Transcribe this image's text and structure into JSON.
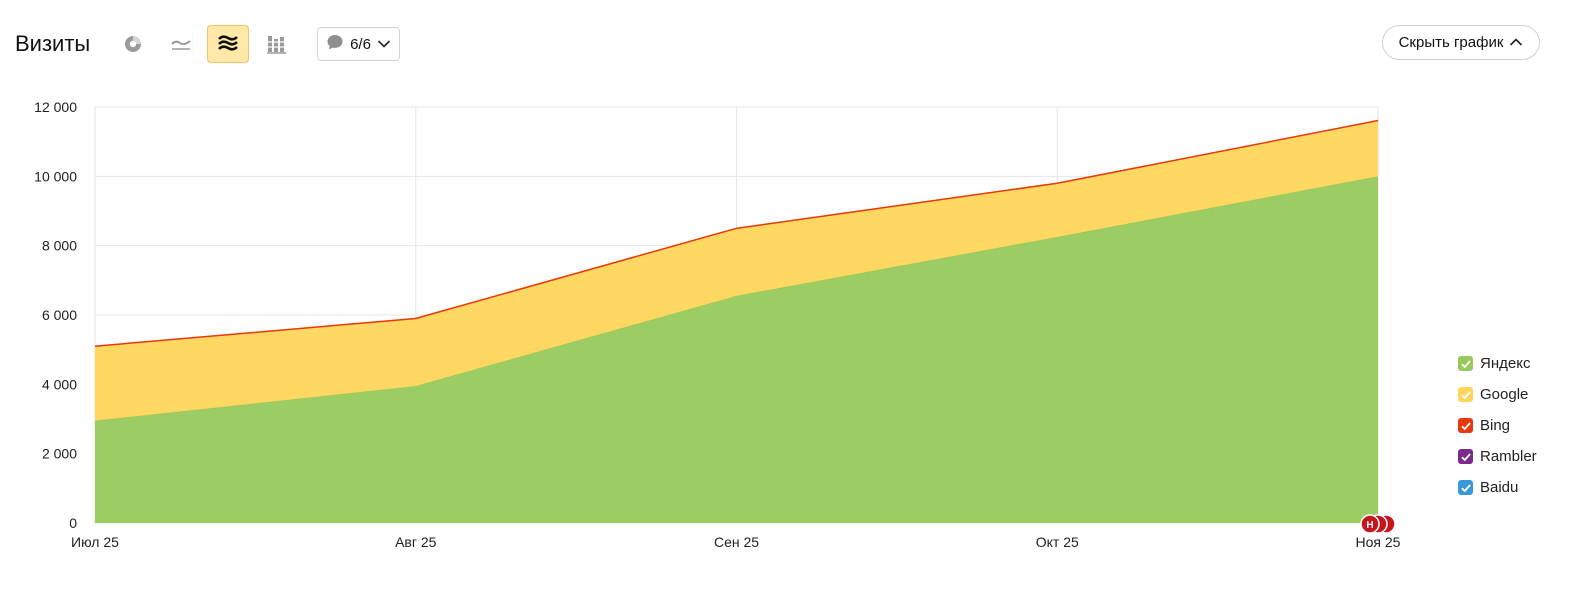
{
  "header": {
    "title": "Визиты",
    "toolbar_icons": [
      {
        "name": "pie-chart-icon",
        "active": false
      },
      {
        "name": "line-chart-icon",
        "active": false
      },
      {
        "name": "stacked-area-chart-icon",
        "active": true
      },
      {
        "name": "stacked-bar-chart-icon",
        "active": false
      }
    ],
    "comments": {
      "label": "6/6",
      "icon": "comment-icon",
      "dropdown_icon": "chevron-down-icon"
    },
    "hide_chart": {
      "label": "Скрыть график",
      "icon": "chevron-up-icon"
    }
  },
  "colors": {
    "yandex": "#97c95c",
    "google": "#ffd65c",
    "bing": "#e8380d",
    "rambler": "#7b2b8c",
    "baidu": "#3a9ad9",
    "grid": "#e6e6e6",
    "annotation": "#c4161c"
  },
  "chart_data": {
    "type": "area",
    "stacked": true,
    "categories": [
      "Июл 25",
      "Авг 25",
      "Сен 25",
      "Окт 25",
      "Ноя 25"
    ],
    "ylim": [
      0,
      12000
    ],
    "yticks": [
      0,
      2000,
      4000,
      6000,
      8000,
      10000,
      12000
    ],
    "ytick_labels": [
      "0",
      "2 000",
      "4 000",
      "6 000",
      "8 000",
      "10 000",
      "12 000"
    ],
    "grid": true,
    "legend_position": "right",
    "series": [
      {
        "name": "Яндекс",
        "color": "#97c95c",
        "values": [
          2950,
          3950,
          6550,
          8250,
          10000
        ]
      },
      {
        "name": "Google",
        "color": "#ffd65c",
        "values": [
          2150,
          1950,
          1950,
          1550,
          1600
        ]
      },
      {
        "name": "Bing",
        "color": "#e8380d",
        "values": [
          0,
          0,
          0,
          0,
          10
        ]
      },
      {
        "name": "Rambler",
        "color": "#7b2b8c",
        "values": [
          0,
          0,
          0,
          0,
          0
        ]
      },
      {
        "name": "Baidu",
        "color": "#3a9ad9",
        "values": [
          0,
          0,
          0,
          0,
          0
        ]
      }
    ],
    "annotations": [
      {
        "category": "Ноя 25",
        "label": "Н",
        "count": 3
      }
    ]
  }
}
